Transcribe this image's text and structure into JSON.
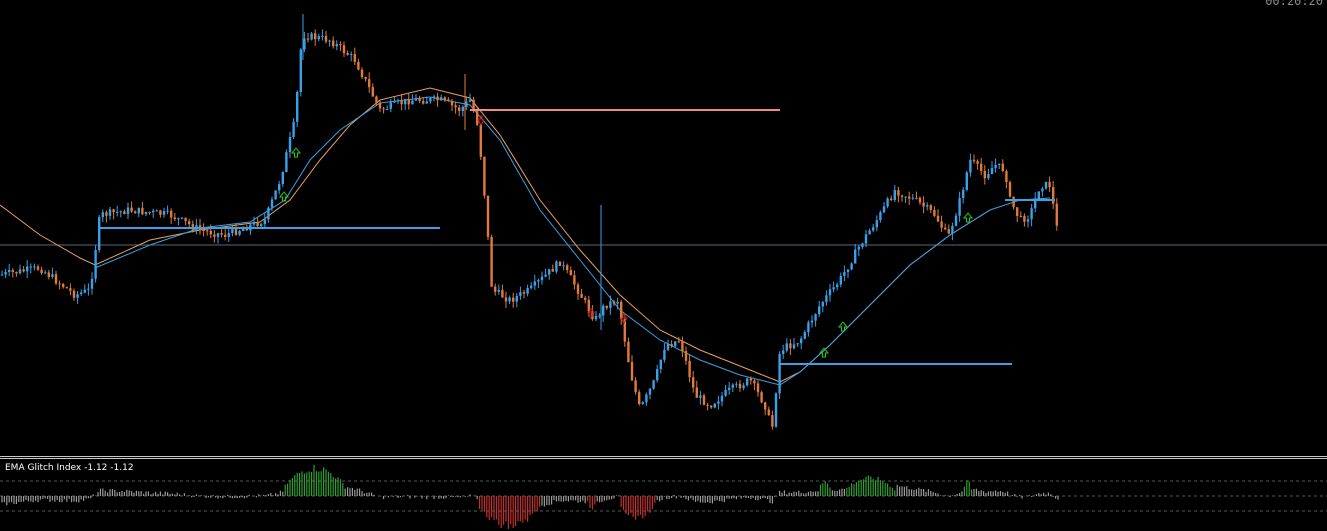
{
  "clock": "00:20:20",
  "indicator": {
    "label": "EMA Glitch Index -1.12 -1.12"
  },
  "colors": {
    "background": "#000000",
    "bull": "#3aa0e8",
    "bear": "#e07a3a",
    "ema_fast": "#3aa0e8",
    "ema_slow": "#e8a060",
    "signal_up": "#22cc22",
    "signal_down": "#cc2222",
    "hist_pos": "#2e9e2e",
    "hist_neg": "#c03030",
    "hist_neutral": "#9a9a9a",
    "level_bull": "#3aa0e8",
    "level_bear": "#f08a80",
    "horizontal_line": "#9ab0c0"
  },
  "chart_data": {
    "type": "candlestick",
    "title": "",
    "xlabel": "",
    "ylabel": "",
    "ylim": [
      0,
      460
    ],
    "price_key_points": [
      [
        0,
        275
      ],
      [
        40,
        268
      ],
      [
        75,
        295
      ],
      [
        90,
        290
      ],
      [
        100,
        215
      ],
      [
        130,
        210
      ],
      [
        170,
        215
      ],
      [
        200,
        230
      ],
      [
        225,
        235
      ],
      [
        265,
        220
      ],
      [
        280,
        180
      ],
      [
        295,
        120
      ],
      [
        302,
        35
      ],
      [
        330,
        40
      ],
      [
        355,
        60
      ],
      [
        380,
        110
      ],
      [
        410,
        100
      ],
      [
        440,
        100
      ],
      [
        460,
        110
      ],
      [
        470,
        100
      ],
      [
        478,
        125
      ],
      [
        485,
        200
      ],
      [
        492,
        290
      ],
      [
        510,
        300
      ],
      [
        530,
        290
      ],
      [
        560,
        262
      ],
      [
        575,
        285
      ],
      [
        595,
        320
      ],
      [
        605,
        305
      ],
      [
        618,
        300
      ],
      [
        630,
        370
      ],
      [
        640,
        410
      ],
      [
        655,
        380
      ],
      [
        665,
        345
      ],
      [
        680,
        340
      ],
      [
        695,
        395
      ],
      [
        710,
        405
      ],
      [
        730,
        390
      ],
      [
        750,
        380
      ],
      [
        765,
        405
      ],
      [
        772,
        430
      ],
      [
        780,
        350
      ],
      [
        800,
        340
      ],
      [
        820,
        305
      ],
      [
        840,
        280
      ],
      [
        860,
        245
      ],
      [
        880,
        215
      ],
      [
        895,
        190
      ],
      [
        915,
        200
      ],
      [
        935,
        215
      ],
      [
        948,
        238
      ],
      [
        960,
        200
      ],
      [
        970,
        160
      ],
      [
        985,
        175
      ],
      [
        995,
        165
      ],
      [
        1005,
        170
      ],
      [
        1010,
        200
      ],
      [
        1020,
        220
      ],
      [
        1030,
        215
      ],
      [
        1040,
        185
      ],
      [
        1050,
        185
      ],
      [
        1058,
        235
      ]
    ],
    "ema_fast_points": [
      [
        95,
        268
      ],
      [
        150,
        245
      ],
      [
        200,
        228
      ],
      [
        250,
        222
      ],
      [
        285,
        200
      ],
      [
        310,
        160
      ],
      [
        340,
        130
      ],
      [
        380,
        103
      ],
      [
        430,
        97
      ],
      [
        470,
        105
      ],
      [
        500,
        140
      ],
      [
        540,
        210
      ],
      [
        580,
        260
      ],
      [
        620,
        310
      ],
      [
        660,
        340
      ],
      [
        700,
        360
      ],
      [
        740,
        375
      ],
      [
        780,
        385
      ],
      [
        800,
        372
      ],
      [
        830,
        345
      ],
      [
        870,
        305
      ],
      [
        910,
        265
      ],
      [
        950,
        235
      ],
      [
        990,
        210
      ],
      [
        1020,
        200
      ],
      [
        1050,
        198
      ]
    ],
    "ema_slow_points": [
      [
        0,
        205
      ],
      [
        40,
        235
      ],
      [
        80,
        258
      ],
      [
        95,
        265
      ],
      [
        150,
        240
      ],
      [
        200,
        230
      ],
      [
        260,
        222
      ],
      [
        290,
        200
      ],
      [
        320,
        160
      ],
      [
        350,
        125
      ],
      [
        380,
        100
      ],
      [
        430,
        88
      ],
      [
        470,
        98
      ],
      [
        500,
        135
      ],
      [
        540,
        200
      ],
      [
        580,
        250
      ],
      [
        620,
        295
      ],
      [
        660,
        330
      ],
      [
        700,
        350
      ],
      [
        750,
        370
      ],
      [
        780,
        382
      ],
      [
        800,
        372
      ],
      [
        830,
        345
      ],
      [
        870,
        305
      ],
      [
        910,
        265
      ],
      [
        950,
        235
      ],
      [
        990,
        210
      ]
    ],
    "levels": [
      {
        "x1": 100,
        "x2": 440,
        "y": 228,
        "kind": "bull"
      },
      {
        "x1": 470,
        "x2": 780,
        "y": 110,
        "kind": "bear"
      },
      {
        "x1": 780,
        "x2": 1012,
        "y": 364,
        "kind": "bull"
      },
      {
        "x1": 1005,
        "x2": 1055,
        "y": 200,
        "kind": "bull"
      },
      {
        "x1": 0,
        "x2": 1327,
        "y": 245,
        "kind": "horizontal"
      }
    ],
    "signals_up": [
      {
        "x": 284,
        "y": 197
      },
      {
        "x": 296,
        "y": 153
      },
      {
        "x": 824,
        "y": 353
      },
      {
        "x": 843,
        "y": 327
      },
      {
        "x": 968,
        "y": 218
      }
    ],
    "signals_down": [
      {
        "x": 481,
        "y": 120
      },
      {
        "x": 591,
        "y": 313
      },
      {
        "x": 624,
        "y": 318
      }
    ],
    "histogram_zones": [
      {
        "from": 285,
        "to": 345,
        "sign": "pos",
        "peak": 28
      },
      {
        "from": 478,
        "to": 540,
        "sign": "neg",
        "peak": 30
      },
      {
        "from": 587,
        "to": 597,
        "sign": "neg",
        "peak": 12
      },
      {
        "from": 620,
        "to": 655,
        "sign": "neg",
        "peak": 22
      },
      {
        "from": 818,
        "to": 832,
        "sign": "pos",
        "peak": 14
      },
      {
        "from": 845,
        "to": 895,
        "sign": "pos",
        "peak": 18
      },
      {
        "from": 963,
        "to": 972,
        "sign": "pos",
        "peak": 14
      }
    ]
  }
}
